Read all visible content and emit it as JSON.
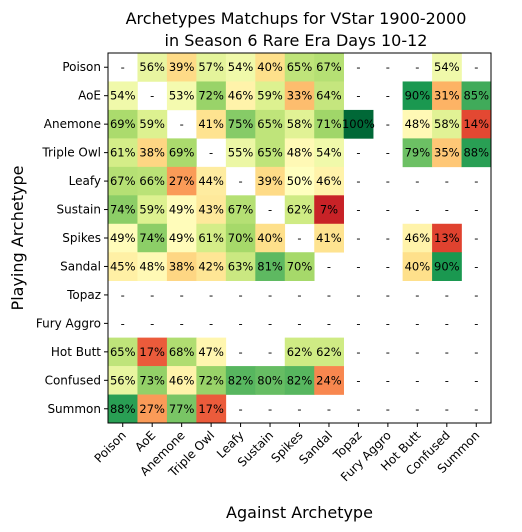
{
  "chart_data": {
    "type": "heatmap",
    "title": "Archetypes Matchups for VStar 1900-2000",
    "subtitle": "in Season 6 Rare Era Days 10-12",
    "xlabel": "Against Archetype",
    "ylabel": "Playing Archetype",
    "x_categories": [
      "Poison",
      "AoE",
      "Anemone",
      "Triple Owl",
      "Leafy",
      "Sustain",
      "Spikes",
      "Sandal",
      "Topaz",
      "Fury Aggro",
      "Hot Butt",
      "Confused",
      "Summon"
    ],
    "y_categories": [
      "Poison",
      "AoE",
      "Anemone",
      "Triple Owl",
      "Leafy",
      "Sustain",
      "Spikes",
      "Sandal",
      "Topaz",
      "Fury Aggro",
      "Hot Butt",
      "Confused",
      "Summon"
    ],
    "missing_label": "-",
    "value_suffix": "%",
    "colormap": "RdYlGn",
    "value_range": [
      0,
      100
    ],
    "values": [
      [
        null,
        56,
        39,
        57,
        54,
        40,
        65,
        67,
        null,
        null,
        null,
        54,
        null
      ],
      [
        54,
        null,
        53,
        72,
        46,
        59,
        33,
        64,
        null,
        null,
        90,
        31,
        85
      ],
      [
        69,
        59,
        null,
        41,
        75,
        65,
        58,
        71,
        100,
        null,
        48,
        58,
        14
      ],
      [
        61,
        38,
        69,
        null,
        55,
        65,
        48,
        54,
        null,
        null,
        79,
        35,
        88
      ],
      [
        67,
        66,
        27,
        44,
        null,
        39,
        50,
        46,
        null,
        null,
        null,
        null,
        null
      ],
      [
        74,
        59,
        49,
        43,
        67,
        null,
        62,
        7,
        null,
        null,
        null,
        null,
        null
      ],
      [
        49,
        74,
        49,
        61,
        70,
        40,
        null,
        41,
        null,
        null,
        46,
        13,
        null
      ],
      [
        45,
        48,
        38,
        42,
        63,
        81,
        70,
        null,
        null,
        null,
        40,
        90,
        null
      ],
      [
        null,
        null,
        null,
        null,
        null,
        null,
        null,
        null,
        null,
        null,
        null,
        null,
        null
      ],
      [
        null,
        null,
        null,
        null,
        null,
        null,
        null,
        null,
        null,
        null,
        null,
        null,
        null
      ],
      [
        65,
        17,
        68,
        47,
        null,
        null,
        62,
        62,
        null,
        null,
        null,
        null,
        null
      ],
      [
        56,
        73,
        46,
        72,
        82,
        80,
        82,
        24,
        null,
        null,
        null,
        null,
        null
      ],
      [
        88,
        27,
        77,
        17,
        null,
        null,
        null,
        null,
        null,
        null,
        null,
        null,
        null
      ]
    ]
  }
}
